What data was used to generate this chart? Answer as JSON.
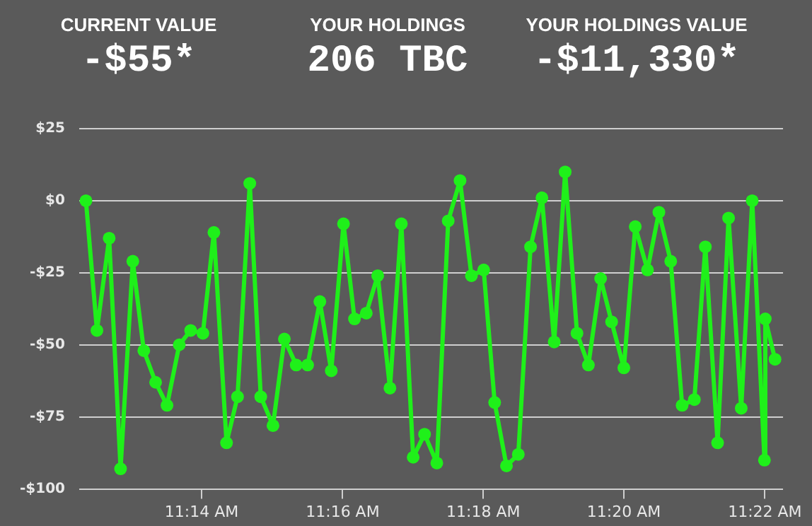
{
  "chart_data": {
    "type": "line",
    "annotations": [
      "CURRENT VALUE",
      "-$55*",
      "YOUR HOLDINGS",
      "206 TBC",
      "YOUR HOLDINGS VALUE",
      "-$11,330*"
    ],
    "x": [
      11.2059,
      11.2085,
      11.2114,
      11.2141,
      11.217,
      11.2196,
      11.2224,
      11.2251,
      11.228,
      11.2307,
      11.2336,
      11.2362,
      11.2392,
      11.2418,
      11.2447,
      11.2473,
      11.2502,
      11.2529,
      11.2557,
      11.2584,
      11.2613,
      11.264,
      11.2669,
      11.2695,
      11.2723,
      11.275,
      11.2779,
      11.2806,
      11.2834,
      11.2861,
      11.289,
      11.2917,
      11.2945,
      11.2972,
      11.3001,
      11.3027,
      11.3055,
      11.3083,
      11.3112,
      11.3139,
      11.3168,
      11.3194,
      11.3222,
      11.3249,
      11.3278,
      11.3304,
      11.3333,
      11.336,
      11.3389,
      11.3416,
      11.3444,
      11.3471,
      11.35,
      11.3526,
      11.3555,
      11.3581,
      11.3611,
      11.3637,
      11.3666,
      11.3668,
      11.3691
    ],
    "series": [
      {
        "color": "#1ff01a",
        "values": [
          0,
          -45,
          -13,
          -93,
          -21,
          -52,
          -63,
          -71,
          -50,
          -45,
          -46,
          -11,
          -84,
          -68,
          6,
          -68,
          -78,
          -48,
          -57,
          -57,
          -35,
          -59,
          -8,
          -41,
          -39,
          -26,
          -65,
          -8,
          -89,
          -81,
          -91,
          -7,
          7,
          -26,
          -24,
          -70,
          -92,
          -88,
          -16,
          1,
          -49,
          10,
          -46,
          -57,
          -27,
          -42,
          -58,
          -9,
          -24,
          -4,
          -21,
          -71,
          -69,
          -16,
          -84,
          -6,
          -72,
          0,
          -90,
          -41,
          -55
        ]
      }
    ],
    "xlim": [
      11.2043,
      11.371
    ],
    "xticks": [
      {
        "value": 11.2333,
        "label": "11:14 AM"
      },
      {
        "value": 11.2667,
        "label": "11:16 AM"
      },
      {
        "value": 11.3,
        "label": "11:18 AM"
      },
      {
        "value": 11.3333,
        "label": "11:20 AM"
      },
      {
        "value": 11.3667,
        "label": "11:22 AM"
      }
    ],
    "ylim": [
      -100,
      25
    ],
    "yticks": [
      {
        "value": 25,
        "label": "$25"
      },
      {
        "value": 0,
        "label": "$0"
      },
      {
        "value": -25,
        "label": "-$25"
      },
      {
        "value": -50,
        "label": "-$50"
      },
      {
        "value": -75,
        "label": "-$75"
      },
      {
        "value": -100,
        "label": "-$100"
      }
    ],
    "grid": "y",
    "legend": false,
    "marker": "circle",
    "line_style": "solid"
  }
}
